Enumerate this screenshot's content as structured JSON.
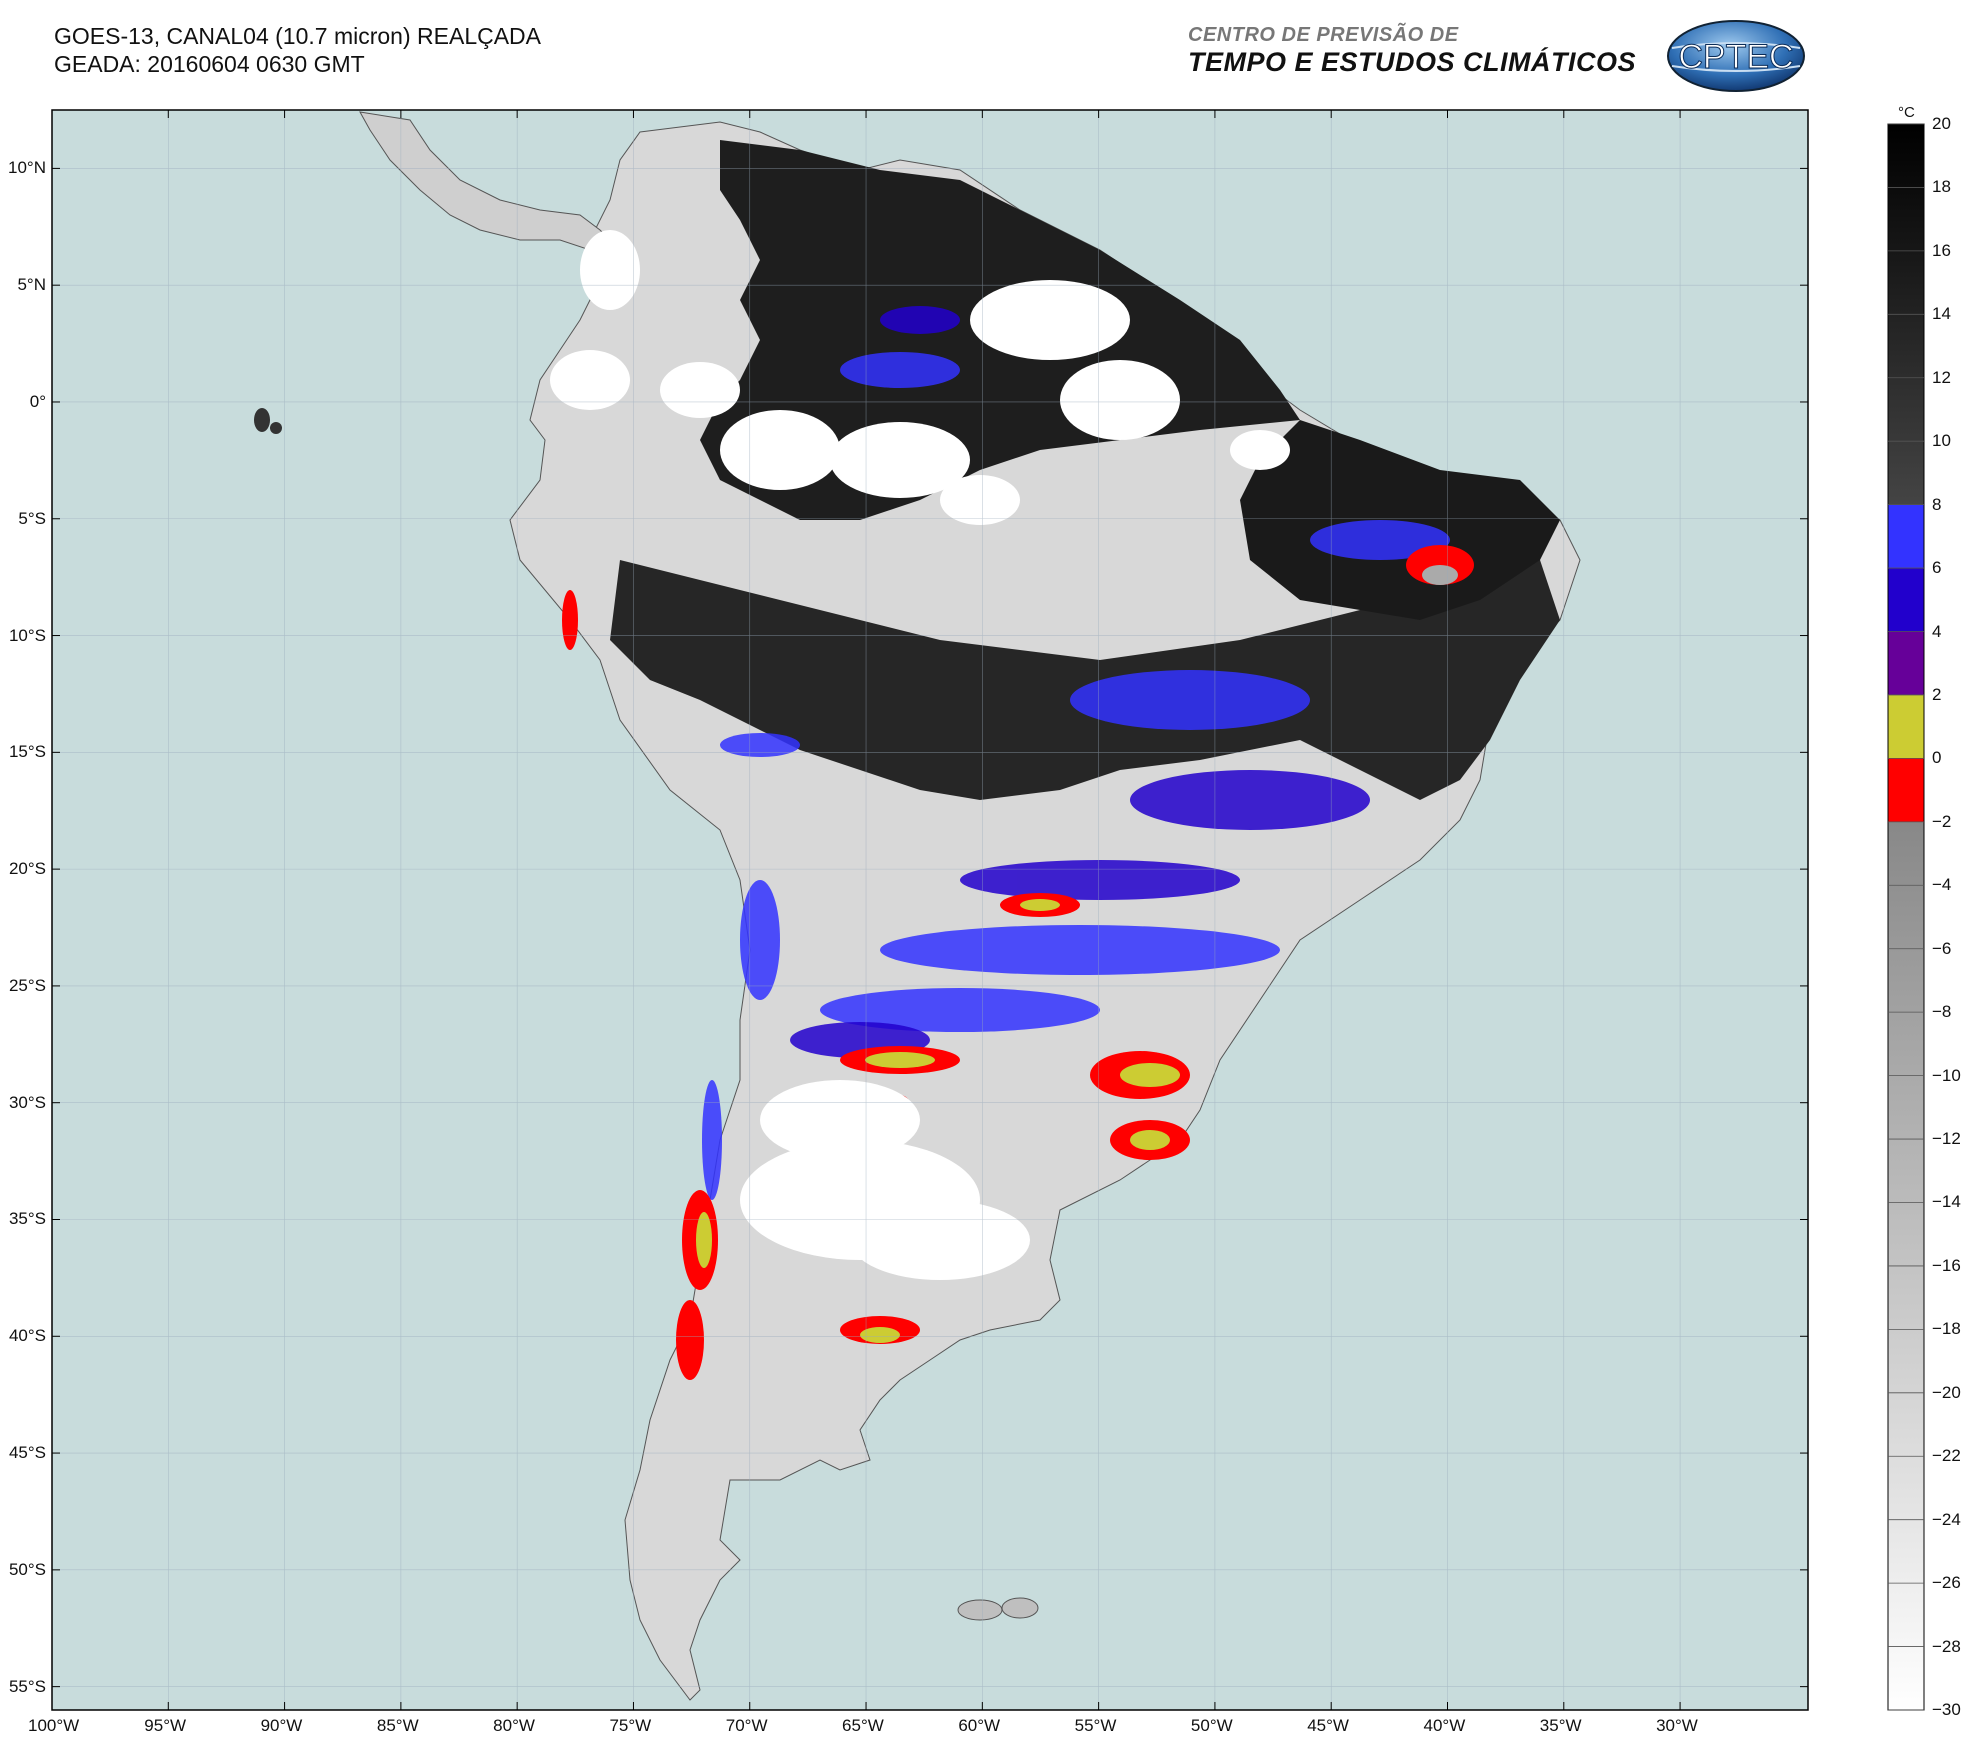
{
  "header": {
    "title_line1": "GOES-13, CANAL04 (10.7 micron) REALÇADA",
    "title_line2": "GEADA: 20160604 0630 GMT",
    "org_line1": "CENTRO DE PREVISÃO DE",
    "org_line2": "TEMPO E ESTUDOS CLIMÁTICOS",
    "logo_text": "CPTEC"
  },
  "map": {
    "ocean_color": "#c8dcdc",
    "lon_range": [
      -100,
      -24.5
    ],
    "lat_range": [
      -56,
      12.5
    ],
    "lat_labels": [
      "10°N",
      "5°N",
      "0°",
      "5°S",
      "10°S",
      "15°S",
      "20°S",
      "25°S",
      "30°S",
      "35°S",
      "40°S",
      "45°S",
      "50°S",
      "55°S"
    ],
    "lon_labels": [
      "100°W",
      "95°W",
      "90°W",
      "85°W",
      "80°W",
      "75°W",
      "70°W",
      "65°W",
      "60°W",
      "55°W",
      "50°W",
      "45°W",
      "40°W",
      "35°W",
      "30°W"
    ]
  },
  "colorbar": {
    "unit": "°C",
    "labels": [
      "20",
      "18",
      "16",
      "14",
      "12",
      "10",
      "8",
      "6",
      "4",
      "2",
      "0",
      "−2",
      "−4",
      "−6",
      "−8",
      "−10",
      "−12",
      "−14",
      "−16",
      "−18",
      "−20",
      "−22",
      "−24",
      "−26",
      "−28",
      "−30"
    ],
    "colors": {
      "band_20_8": "dark gray ramp",
      "band_8_6": "#3333ff",
      "band_6_4": "#2200cc",
      "band_4_2": "#660099",
      "band_2_0": "#cccc33",
      "band_0_m2": "#ff0000",
      "band_m2_m30": "light gray ramp"
    }
  }
}
